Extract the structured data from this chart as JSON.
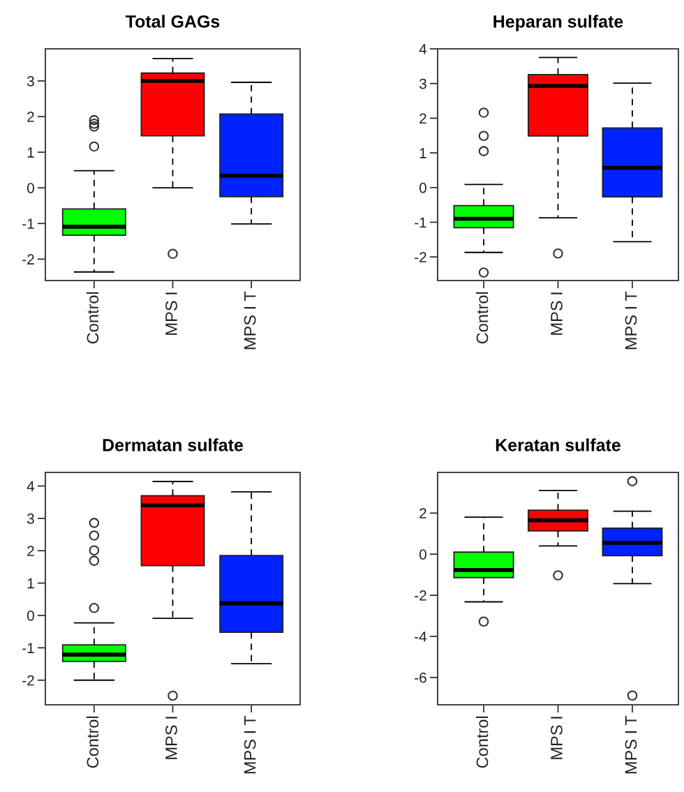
{
  "chart_data": [
    {
      "type": "box",
      "title": "Total GAGs",
      "categories": [
        "Control",
        "MPS I",
        "MPS I T"
      ],
      "colors": [
        "#00ff00",
        "#ff0000",
        "#0022ff"
      ],
      "line_style": "dashed",
      "marker": "circle",
      "ylim": [
        -2.6,
        3.9
      ],
      "yticks": [
        -2,
        -1,
        0,
        1,
        2,
        3
      ],
      "boxes": [
        {
          "low": -2.36,
          "q1": -1.33,
          "median": -1.09,
          "q3": -0.59,
          "high": 0.48,
          "outliers": [
            1.9,
            1.8,
            1.72,
            1.16
          ]
        },
        {
          "low": 0,
          "q1": 1.46,
          "median": 3.0,
          "q3": 3.22,
          "high": 3.63,
          "outliers": [
            -1.85
          ]
        },
        {
          "low": -1.01,
          "q1": -0.25,
          "median": 0.34,
          "q3": 2.07,
          "high": 2.96
        }
      ]
    },
    {
      "type": "box",
      "title": "Heparan sulfate",
      "categories": [
        "Control",
        "MPS I",
        "MPS I T"
      ],
      "colors": [
        "#00ff00",
        "#ff0000",
        "#0022ff"
      ],
      "line_style": "dashed",
      "marker": "circle",
      "ylim": [
        -2.68,
        4.0
      ],
      "yticks": [
        -2,
        -1,
        0,
        1,
        2,
        3,
        4
      ],
      "boxes": [
        {
          "low": -1.87,
          "q1": -1.16,
          "median": -0.9,
          "q3": -0.52,
          "high": 0.09,
          "outliers": [
            2.16,
            1.49,
            1.05,
            -2.45
          ]
        },
        {
          "low": -0.87,
          "q1": 1.49,
          "median": 2.93,
          "q3": 3.26,
          "high": 3.75,
          "outliers": [
            -1.9
          ]
        },
        {
          "low": -1.56,
          "q1": -0.27,
          "median": 0.57,
          "q3": 1.72,
          "high": 3.01
        }
      ]
    },
    {
      "type": "box",
      "title": "Dermatan sulfate",
      "categories": [
        "Control",
        "MPS I",
        "MPS I T"
      ],
      "colors": [
        "#00ff00",
        "#ff0000",
        "#0022ff"
      ],
      "line_style": "dashed",
      "marker": "circle",
      "ylim": [
        -2.76,
        4.42
      ],
      "yticks": [
        -2,
        -1,
        0,
        1,
        2,
        3,
        4
      ],
      "boxes": [
        {
          "low": -2.0,
          "q1": -1.42,
          "median": -1.21,
          "q3": -0.91,
          "high": -0.23,
          "outliers": [
            2.86,
            2.47,
            2.01,
            1.69,
            0.23
          ]
        },
        {
          "low": -0.09,
          "q1": 1.54,
          "median": 3.4,
          "q3": 3.7,
          "high": 4.14,
          "outliers": [
            -2.48
          ]
        },
        {
          "low": -1.49,
          "q1": -0.52,
          "median": 0.37,
          "q3": 1.85,
          "high": 3.82
        }
      ]
    },
    {
      "type": "box",
      "title": "Keratan sulfate",
      "categories": [
        "Control",
        "MPS I",
        "MPS I T"
      ],
      "colors": [
        "#00ff00",
        "#ff0000",
        "#0022ff"
      ],
      "line_style": "dashed",
      "marker": "circle",
      "ylim": [
        -7.33,
        3.98
      ],
      "yticks": [
        -6,
        -4,
        -2,
        0,
        2
      ],
      "boxes": [
        {
          "low": -2.32,
          "q1": -1.14,
          "median": -0.77,
          "q3": 0.1,
          "high": 1.8,
          "outliers": [
            -3.28
          ]
        },
        {
          "low": 0.4,
          "q1": 1.13,
          "median": 1.65,
          "q3": 2.14,
          "high": 3.1,
          "outliers": [
            -1.03
          ]
        },
        {
          "low": -1.43,
          "q1": -0.07,
          "median": 0.55,
          "q3": 1.27,
          "high": 2.09,
          "outliers": [
            3.55,
            -6.88
          ]
        }
      ]
    }
  ]
}
